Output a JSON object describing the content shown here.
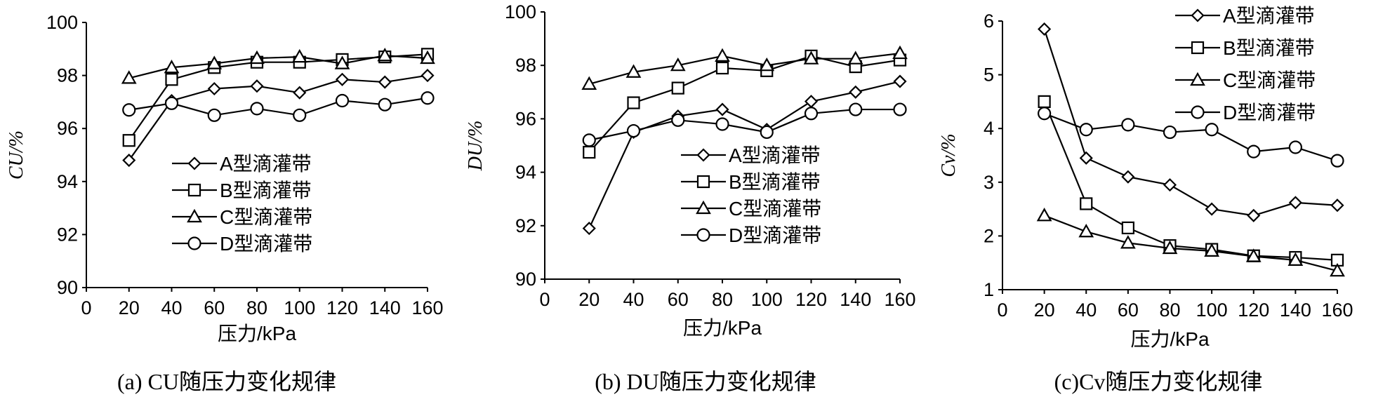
{
  "chart_data": [
    {
      "type": "line",
      "caption": "(a) CU随压力变化规律",
      "xlabel": "压力/kPa",
      "ylabel": "CU/%",
      "xlim": [
        0,
        160
      ],
      "ylim": [
        90,
        100
      ],
      "xticks": [
        0,
        20,
        40,
        60,
        80,
        100,
        120,
        140,
        160
      ],
      "yticks": [
        90,
        92,
        94,
        96,
        98,
        100
      ],
      "legend_position": "bottom-right",
      "x": [
        20,
        40,
        60,
        80,
        100,
        120,
        140,
        160
      ],
      "series": [
        {
          "name": "A型滴灌带",
          "marker": "diamond",
          "values": [
            94.8,
            97.05,
            97.5,
            97.6,
            97.35,
            97.85,
            97.75,
            98.0
          ]
        },
        {
          "name": "B型滴灌带",
          "marker": "square",
          "values": [
            95.55,
            97.85,
            98.3,
            98.5,
            98.5,
            98.6,
            98.7,
            98.8
          ]
        },
        {
          "name": "C型滴灌带",
          "marker": "triangle",
          "values": [
            97.9,
            98.3,
            98.45,
            98.65,
            98.7,
            98.45,
            98.75,
            98.65
          ]
        },
        {
          "name": "D型滴灌带",
          "marker": "circle",
          "values": [
            96.7,
            96.95,
            96.5,
            96.75,
            96.5,
            97.05,
            96.9,
            97.15
          ]
        }
      ]
    },
    {
      "type": "line",
      "caption": "(b) DU随压力变化规律",
      "xlabel": "压力/kPa",
      "ylabel": "DU/%",
      "xlim": [
        0,
        160
      ],
      "ylim": [
        90,
        100
      ],
      "xticks": [
        0,
        20,
        40,
        60,
        80,
        100,
        120,
        140,
        160
      ],
      "yticks": [
        90,
        92,
        94,
        96,
        98,
        100
      ],
      "legend_position": "bottom-right",
      "x": [
        20,
        40,
        60,
        80,
        100,
        120,
        140,
        160
      ],
      "series": [
        {
          "name": "A型滴灌带",
          "marker": "diamond",
          "values": [
            91.9,
            95.5,
            96.1,
            96.35,
            95.6,
            96.65,
            97.0,
            97.4
          ]
        },
        {
          "name": "B型滴灌带",
          "marker": "square",
          "values": [
            94.75,
            96.6,
            97.15,
            97.9,
            97.8,
            98.35,
            97.95,
            98.2
          ]
        },
        {
          "name": "C型滴灌带",
          "marker": "triangle",
          "values": [
            97.3,
            97.75,
            98.0,
            98.35,
            98.0,
            98.25,
            98.25,
            98.45
          ]
        },
        {
          "name": "D型滴灌带",
          "marker": "circle",
          "values": [
            95.2,
            95.55,
            95.95,
            95.8,
            95.5,
            96.2,
            96.35,
            96.35
          ]
        }
      ]
    },
    {
      "type": "line",
      "caption": "(c)Cv随压力变化规律",
      "xlabel": "压力/kPa",
      "ylabel": "Cv/%",
      "xlim": [
        0,
        160
      ],
      "ylim": [
        1,
        6
      ],
      "xticks": [
        0,
        20,
        40,
        60,
        80,
        100,
        120,
        140,
        160
      ],
      "yticks": [
        1,
        2,
        3,
        4,
        5,
        6
      ],
      "legend_position": "top-right",
      "x": [
        20,
        40,
        60,
        80,
        100,
        120,
        140,
        160
      ],
      "series": [
        {
          "name": "A型滴灌带",
          "marker": "diamond",
          "values": [
            5.85,
            3.45,
            3.1,
            2.95,
            2.5,
            2.38,
            2.62,
            2.57
          ]
        },
        {
          "name": "B型滴灌带",
          "marker": "square",
          "values": [
            4.5,
            2.6,
            2.15,
            1.82,
            1.75,
            1.63,
            1.6,
            1.55
          ]
        },
        {
          "name": "C型滴灌带",
          "marker": "triangle",
          "values": [
            2.38,
            2.08,
            1.87,
            1.77,
            1.72,
            1.62,
            1.55,
            1.35
          ]
        },
        {
          "name": "D型滴灌带",
          "marker": "circle",
          "values": [
            4.28,
            3.98,
            4.07,
            3.93,
            3.98,
            3.57,
            3.65,
            3.4
          ]
        }
      ]
    }
  ]
}
